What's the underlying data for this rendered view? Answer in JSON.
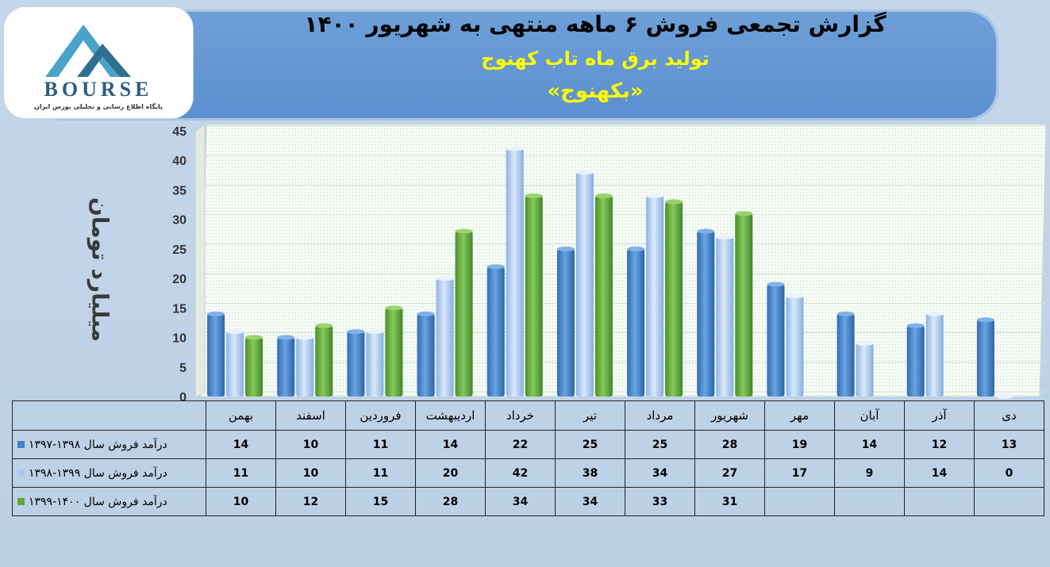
{
  "header": {
    "title": "گزارش تجمعی فروش ۶ ماهه منتهی به شهریور ۱۴۰۰",
    "subtitle": "تولید برق ماه تاب کهنوج",
    "ticker": "«بکهنوج»"
  },
  "logo": {
    "text": "BOURSE",
    "tagline": "پایگاه اطلاع رسانی و تحلیلی بورس ایران"
  },
  "colors": {
    "series_1397_1398": "#3f82cc",
    "series_1398_1399": "#a9c9ef",
    "series_1399_1400": "#5ea63a",
    "background": "#c4d6ea",
    "banner": "#6a9cd7"
  },
  "chart_data": {
    "type": "bar",
    "ylabel": "میلیارد تومان",
    "ylim": [
      0,
      45
    ],
    "yticks": [
      0,
      5,
      10,
      15,
      20,
      25,
      30,
      35,
      40,
      45
    ],
    "grid": true,
    "categories": [
      "بهمن",
      "اسفند",
      "فروردین",
      "اردیبهشت",
      "خرداد",
      "تیر",
      "مرداد",
      "شهریور",
      "مهر",
      "آبان",
      "آذر",
      "دی"
    ],
    "series": [
      {
        "name": "درآمد فروش سال ۱۳۹۸-۱۳۹۷",
        "values": [
          14,
          10,
          11,
          14,
          22,
          25,
          25,
          28,
          19,
          14,
          12,
          13
        ]
      },
      {
        "name": "درآمد فروش سال ۱۳۹۹-۱۳۹۸",
        "values": [
          11,
          10,
          11,
          20,
          42,
          38,
          34,
          27,
          17,
          9,
          14,
          0
        ]
      },
      {
        "name": "درآمد فروش سال ۱۴۰۰-۱۳۹۹",
        "values": [
          10,
          12,
          15,
          28,
          34,
          34,
          33,
          31,
          null,
          null,
          null,
          null
        ]
      }
    ]
  }
}
